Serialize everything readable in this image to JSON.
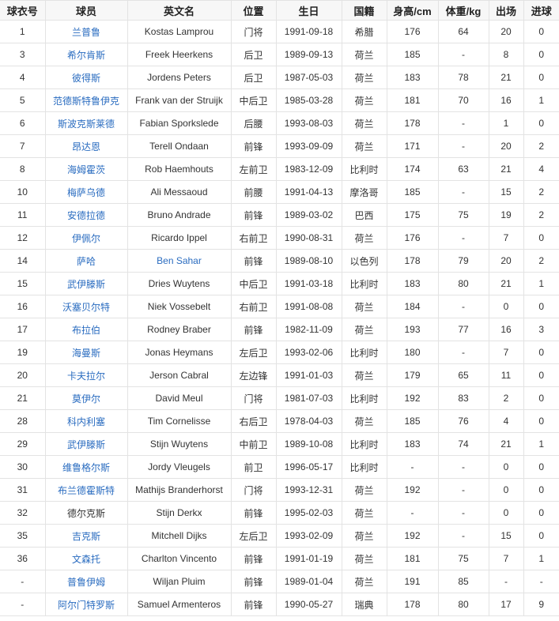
{
  "colors": {
    "link": "#2a6cc0",
    "text": "#333333",
    "header_bg": "#f7f7f7",
    "border": "#e3e3e3"
  },
  "table": {
    "headers": [
      "球衣号",
      "球员",
      "英文名",
      "位置",
      "生日",
      "国籍",
      "身高/cm",
      "体重/kg",
      "出场",
      "进球"
    ],
    "rows": [
      {
        "no": "1",
        "cn": "兰普鲁",
        "en": "Kostas Lamprou",
        "pos": "门将",
        "birth": "1991-09-18",
        "nat": "希腊",
        "h": "176",
        "w": "64",
        "apps": "20",
        "goals": "0",
        "cn_link": true,
        "en_link": false
      },
      {
        "no": "3",
        "cn": "希尔肯斯",
        "en": "Freek Heerkens",
        "pos": "后卫",
        "birth": "1989-09-13",
        "nat": "荷兰",
        "h": "185",
        "w": "-",
        "apps": "8",
        "goals": "0",
        "cn_link": true,
        "en_link": false
      },
      {
        "no": "4",
        "cn": "彼得斯",
        "en": "Jordens Peters",
        "pos": "后卫",
        "birth": "1987-05-03",
        "nat": "荷兰",
        "h": "183",
        "w": "78",
        "apps": "21",
        "goals": "0",
        "cn_link": true,
        "en_link": false
      },
      {
        "no": "5",
        "cn": "范德斯特鲁伊克",
        "en": "Frank van der Struijk",
        "pos": "中后卫",
        "birth": "1985-03-28",
        "nat": "荷兰",
        "h": "181",
        "w": "70",
        "apps": "16",
        "goals": "1",
        "cn_link": true,
        "en_link": false
      },
      {
        "no": "6",
        "cn": "斯波克斯莱德",
        "en": "Fabian Sporkslede",
        "pos": "后腰",
        "birth": "1993-08-03",
        "nat": "荷兰",
        "h": "178",
        "w": "-",
        "apps": "1",
        "goals": "0",
        "cn_link": true,
        "en_link": false
      },
      {
        "no": "7",
        "cn": "昂达恩",
        "en": "Terell Ondaan",
        "pos": "前锋",
        "birth": "1993-09-09",
        "nat": "荷兰",
        "h": "171",
        "w": "-",
        "apps": "20",
        "goals": "2",
        "cn_link": true,
        "en_link": false
      },
      {
        "no": "8",
        "cn": "海姆霍茨",
        "en": "Rob Haemhouts",
        "pos": "左前卫",
        "birth": "1983-12-09",
        "nat": "比利时",
        "h": "174",
        "w": "63",
        "apps": "21",
        "goals": "4",
        "cn_link": true,
        "en_link": false
      },
      {
        "no": "10",
        "cn": "梅萨乌德",
        "en": "Ali Messaoud",
        "pos": "前腰",
        "birth": "1991-04-13",
        "nat": "摩洛哥",
        "h": "185",
        "w": "-",
        "apps": "15",
        "goals": "2",
        "cn_link": true,
        "en_link": false
      },
      {
        "no": "11",
        "cn": "安德拉德",
        "en": "Bruno Andrade",
        "pos": "前锋",
        "birth": "1989-03-02",
        "nat": "巴西",
        "h": "175",
        "w": "75",
        "apps": "19",
        "goals": "2",
        "cn_link": true,
        "en_link": false
      },
      {
        "no": "12",
        "cn": "伊佩尔",
        "en": "Ricardo Ippel",
        "pos": "右前卫",
        "birth": "1990-08-31",
        "nat": "荷兰",
        "h": "176",
        "w": "-",
        "apps": "7",
        "goals": "0",
        "cn_link": true,
        "en_link": false
      },
      {
        "no": "14",
        "cn": "萨哈",
        "en": "Ben Sahar",
        "pos": "前锋",
        "birth": "1989-08-10",
        "nat": "以色列",
        "h": "178",
        "w": "79",
        "apps": "20",
        "goals": "2",
        "cn_link": true,
        "en_link": true
      },
      {
        "no": "15",
        "cn": "武伊滕斯",
        "en": "Dries Wuytens",
        "pos": "中后卫",
        "birth": "1991-03-18",
        "nat": "比利时",
        "h": "183",
        "w": "80",
        "apps": "21",
        "goals": "1",
        "cn_link": true,
        "en_link": false
      },
      {
        "no": "16",
        "cn": "沃塞贝尔特",
        "en": "Niek Vossebelt",
        "pos": "右前卫",
        "birth": "1991-08-08",
        "nat": "荷兰",
        "h": "184",
        "w": "-",
        "apps": "0",
        "goals": "0",
        "cn_link": true,
        "en_link": false
      },
      {
        "no": "17",
        "cn": "布拉伯",
        "en": "Rodney Braber",
        "pos": "前锋",
        "birth": "1982-11-09",
        "nat": "荷兰",
        "h": "193",
        "w": "77",
        "apps": "16",
        "goals": "3",
        "cn_link": true,
        "en_link": false
      },
      {
        "no": "19",
        "cn": "海曼斯",
        "en": "Jonas Heymans",
        "pos": "左后卫",
        "birth": "1993-02-06",
        "nat": "比利时",
        "h": "180",
        "w": "-",
        "apps": "7",
        "goals": "0",
        "cn_link": true,
        "en_link": false
      },
      {
        "no": "20",
        "cn": "卡夫拉尔",
        "en": "Jerson Cabral",
        "pos": "左边锋",
        "birth": "1991-01-03",
        "nat": "荷兰",
        "h": "179",
        "w": "65",
        "apps": "11",
        "goals": "0",
        "cn_link": true,
        "en_link": false
      },
      {
        "no": "21",
        "cn": "莫伊尔",
        "en": "David Meul",
        "pos": "门将",
        "birth": "1981-07-03",
        "nat": "比利时",
        "h": "192",
        "w": "83",
        "apps": "2",
        "goals": "0",
        "cn_link": true,
        "en_link": false
      },
      {
        "no": "28",
        "cn": "科内利塞",
        "en": "Tim Cornelisse",
        "pos": "右后卫",
        "birth": "1978-04-03",
        "nat": "荷兰",
        "h": "185",
        "w": "76",
        "apps": "4",
        "goals": "0",
        "cn_link": true,
        "en_link": false
      },
      {
        "no": "29",
        "cn": "武伊滕斯",
        "en": "Stijn Wuytens",
        "pos": "中前卫",
        "birth": "1989-10-08",
        "nat": "比利时",
        "h": "183",
        "w": "74",
        "apps": "21",
        "goals": "1",
        "cn_link": true,
        "en_link": false
      },
      {
        "no": "30",
        "cn": "维鲁格尔斯",
        "en": "Jordy Vleugels",
        "pos": "前卫",
        "birth": "1996-05-17",
        "nat": "比利时",
        "h": "-",
        "w": "-",
        "apps": "0",
        "goals": "0",
        "cn_link": true,
        "en_link": false
      },
      {
        "no": "31",
        "cn": "布兰德霍斯特",
        "en": "Mathijs Branderhorst",
        "pos": "门将",
        "birth": "1993-12-31",
        "nat": "荷兰",
        "h": "192",
        "w": "-",
        "apps": "0",
        "goals": "0",
        "cn_link": true,
        "en_link": false
      },
      {
        "no": "32",
        "cn": "德尔克斯",
        "en": "Stijn Derkx",
        "pos": "前锋",
        "birth": "1995-02-03",
        "nat": "荷兰",
        "h": "-",
        "w": "-",
        "apps": "0",
        "goals": "0",
        "cn_link": false,
        "en_link": false
      },
      {
        "no": "35",
        "cn": "吉克斯",
        "en": "Mitchell Dijks",
        "pos": "左后卫",
        "birth": "1993-02-09",
        "nat": "荷兰",
        "h": "192",
        "w": "-",
        "apps": "15",
        "goals": "0",
        "cn_link": true,
        "en_link": false
      },
      {
        "no": "36",
        "cn": "文森托",
        "en": "Charlton Vincento",
        "pos": "前锋",
        "birth": "1991-01-19",
        "nat": "荷兰",
        "h": "181",
        "w": "75",
        "apps": "7",
        "goals": "1",
        "cn_link": true,
        "en_link": false
      },
      {
        "no": "-",
        "cn": "普鲁伊姆",
        "en": "Wiljan Pluim",
        "pos": "前锋",
        "birth": "1989-01-04",
        "nat": "荷兰",
        "h": "191",
        "w": "85",
        "apps": "-",
        "goals": "-",
        "cn_link": true,
        "en_link": false
      },
      {
        "no": "-",
        "cn": "阿尔门特罗斯",
        "en": "Samuel Armenteros",
        "pos": "前锋",
        "birth": "1990-05-27",
        "nat": "瑞典",
        "h": "178",
        "w": "80",
        "apps": "17",
        "goals": "9",
        "cn_link": true,
        "en_link": false
      }
    ]
  }
}
